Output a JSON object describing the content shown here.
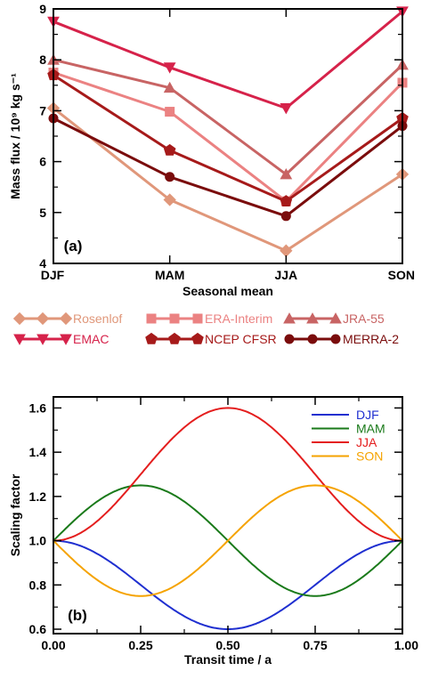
{
  "chart_data": [
    {
      "type": "line",
      "panel_label": "(a)",
      "xlabel": "Seasonal mean",
      "ylabel": "Mass flux / 10⁹ kg s⁻¹",
      "categories": [
        "DJF",
        "MAM",
        "JJA",
        "SON"
      ],
      "yticks": [
        "4",
        "5",
        "6",
        "7",
        "8",
        "9"
      ],
      "ylim": [
        4,
        9
      ],
      "grid": false,
      "legend_position": "below plot",
      "series": [
        {
          "name": "Rosenlof",
          "values": [
            7.05,
            5.25,
            4.25,
            5.75
          ],
          "color": "#e0977a",
          "marker": "diamond"
        },
        {
          "name": "ERA-Interim",
          "values": [
            7.75,
            6.98,
            5.22,
            7.55
          ],
          "color": "#eb8282",
          "marker": "square"
        },
        {
          "name": "JRA-55",
          "values": [
            8.0,
            7.45,
            5.75,
            7.9
          ],
          "color": "#c86464",
          "marker": "triangle-up"
        },
        {
          "name": "EMAC",
          "values": [
            8.75,
            7.85,
            7.05,
            8.95
          ],
          "color": "#d6224a",
          "marker": "triangle-down"
        },
        {
          "name": "NCEP CFSR",
          "values": [
            7.7,
            6.22,
            5.22,
            6.85
          ],
          "color": "#a61a1a",
          "marker": "pentagon"
        },
        {
          "name": "MERRA-2",
          "values": [
            6.85,
            5.7,
            4.93,
            6.7
          ],
          "color": "#7a0c0c",
          "marker": "circle"
        }
      ]
    },
    {
      "type": "line",
      "panel_label": "(b)",
      "xlabel": "Transit time / a",
      "ylabel": "Scaling factor",
      "xlim": [
        0,
        1
      ],
      "ylim": [
        0.58,
        1.65
      ],
      "xticks": [
        "0.00",
        "0.25",
        "0.50",
        "0.75",
        "1.00"
      ],
      "yticks": [
        "0.6",
        "0.8",
        "1.0",
        "1.2",
        "1.4",
        "1.6"
      ],
      "grid": false,
      "legend_position": "top-right",
      "series": [
        {
          "name": "DJF",
          "color": "#1f2fd0",
          "formula": "1 - 0.4·sin²(πt)"
        },
        {
          "name": "MAM",
          "color": "#1a7a1a",
          "formula": "1 + 0.25·sin(2πt)"
        },
        {
          "name": "JJA",
          "color": "#e41e1e",
          "formula": "1 + 0.6·sin²(πt)"
        },
        {
          "name": "SON",
          "color": "#f5a300",
          "formula": "1 - 0.25·sin(2πt)"
        }
      ]
    }
  ]
}
